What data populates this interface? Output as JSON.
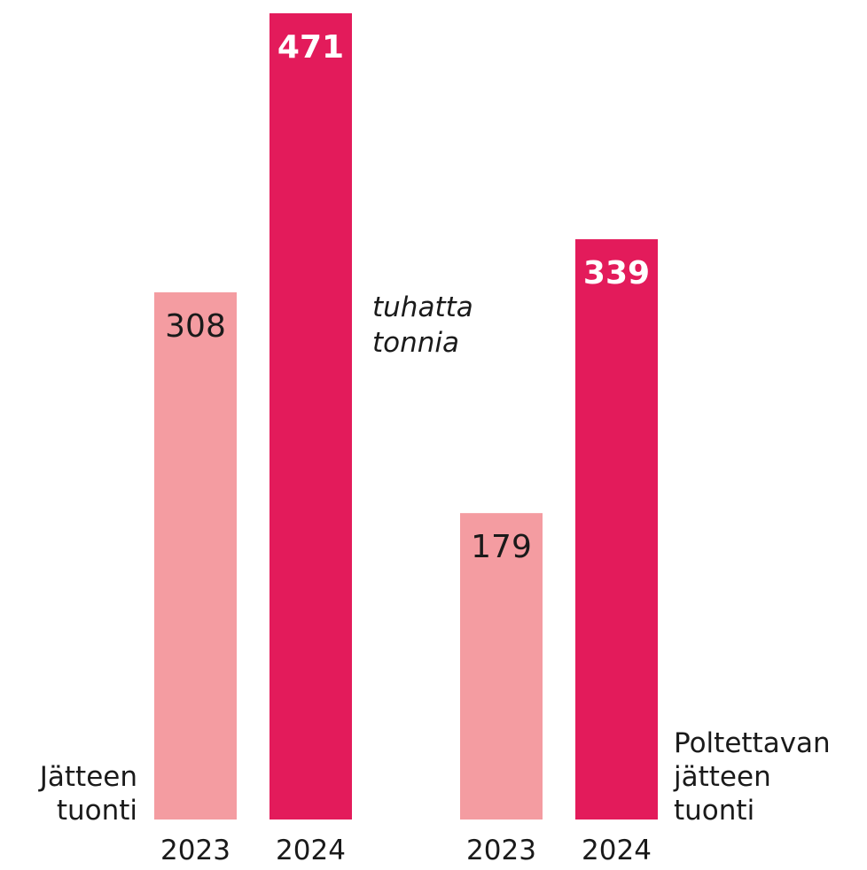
{
  "chart_data": {
    "type": "bar",
    "annotation": [
      "tuhatta",
      "tonnia"
    ],
    "categories": [
      [
        "Jätteen",
        "tuonti"
      ],
      [
        "Poltettavan",
        "jätteen",
        "tuonti"
      ]
    ],
    "series": [
      {
        "name": "2023",
        "color": "#f49ca1",
        "values": [
          308,
          179
        ]
      },
      {
        "name": "2024",
        "color": "#e31b5b",
        "values": [
          471,
          339
        ]
      }
    ]
  }
}
